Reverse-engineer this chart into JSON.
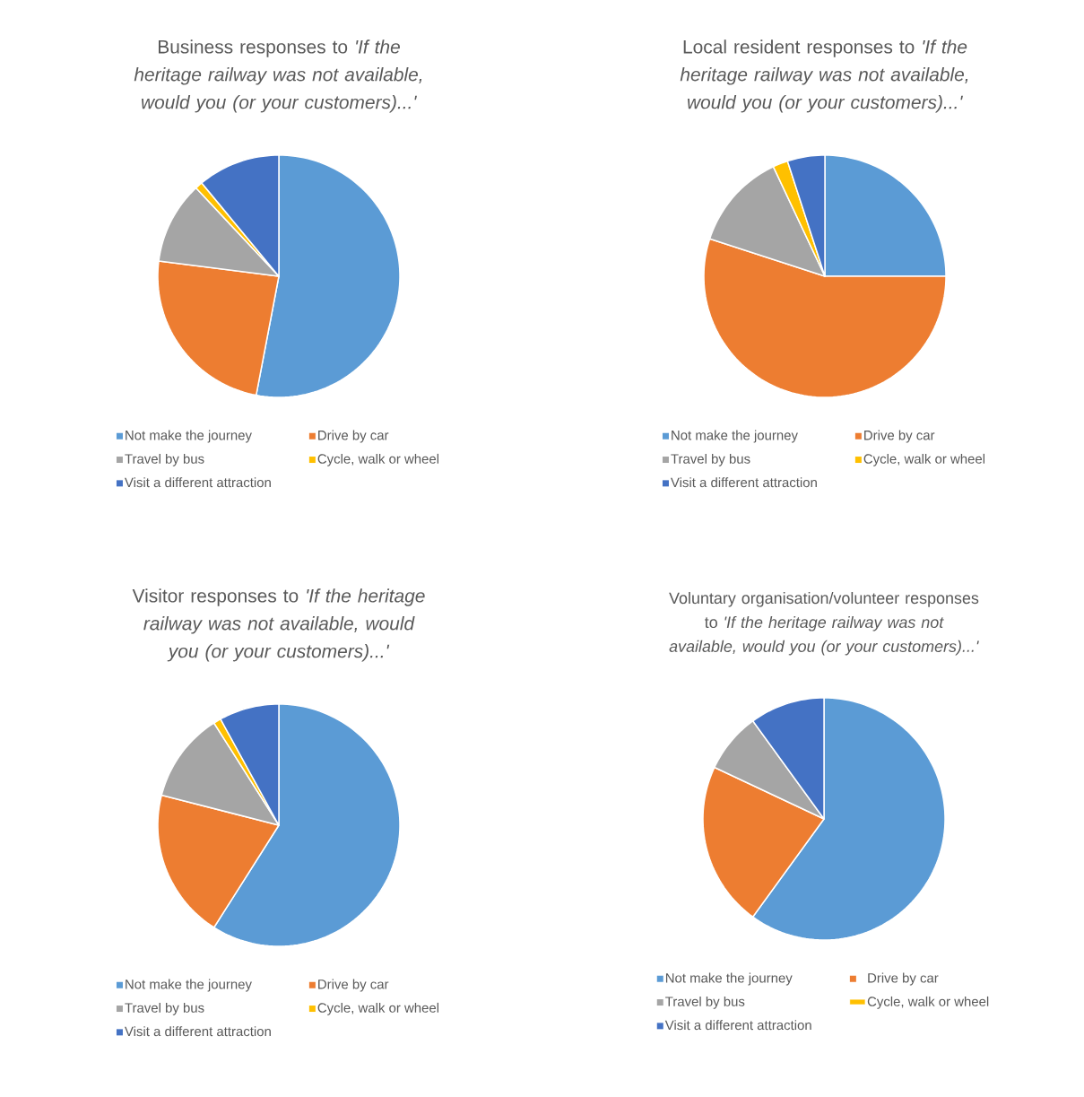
{
  "chart_data": [
    {
      "type": "pie",
      "title": "Business responses to *'If the heritage railway was not available, would you (or your customers)...'*",
      "categories": [
        "Not make the journey",
        "Drive by car",
        "Travel by bus",
        "Cycle, walk or wheel",
        "Visit a different attraction"
      ],
      "values": [
        53,
        24,
        11,
        1,
        11
      ],
      "colors": [
        "#5b9bd5",
        "#ed7d31",
        "#a5a5a5",
        "#ffc000",
        "#4472c4"
      ],
      "legend": "bottom"
    },
    {
      "type": "pie",
      "title": "Local resident responses to *'If the heritage railway was not available, would you (or your customers)...'*",
      "categories": [
        "Not make the journey",
        "Drive by car",
        "Travel by bus",
        "Cycle, walk or wheel",
        "Visit a different attraction"
      ],
      "values": [
        25,
        55,
        13,
        2,
        5
      ],
      "colors": [
        "#5b9bd5",
        "#ed7d31",
        "#a5a5a5",
        "#ffc000",
        "#4472c4"
      ],
      "legend": "bottom"
    },
    {
      "type": "pie",
      "title": "Visitor responses to *'If the heritage railway was not available, would you (or your customers)...'*",
      "categories": [
        "Not make the journey",
        "Drive by car",
        "Travel by bus",
        "Cycle, walk or wheel",
        "Visit a different attraction"
      ],
      "values": [
        59,
        20,
        12,
        1,
        8
      ],
      "colors": [
        "#5b9bd5",
        "#ed7d31",
        "#a5a5a5",
        "#ffc000",
        "#4472c4"
      ],
      "legend": "bottom"
    },
    {
      "type": "pie",
      "title": "Voluntary organisation/volunteer responses to *'If the heritage railway was not available, would you (or your customers)...'*",
      "categories": [
        "Not make the journey",
        "Drive by car",
        "Travel by bus",
        "Cycle, walk or wheel",
        "Visit a different attraction"
      ],
      "values": [
        60,
        22,
        8,
        0,
        10
      ],
      "colors": [
        "#5b9bd5",
        "#ed7d31",
        "#a5a5a5",
        "#ffc000",
        "#4472c4"
      ],
      "legend": "bottom"
    }
  ]
}
